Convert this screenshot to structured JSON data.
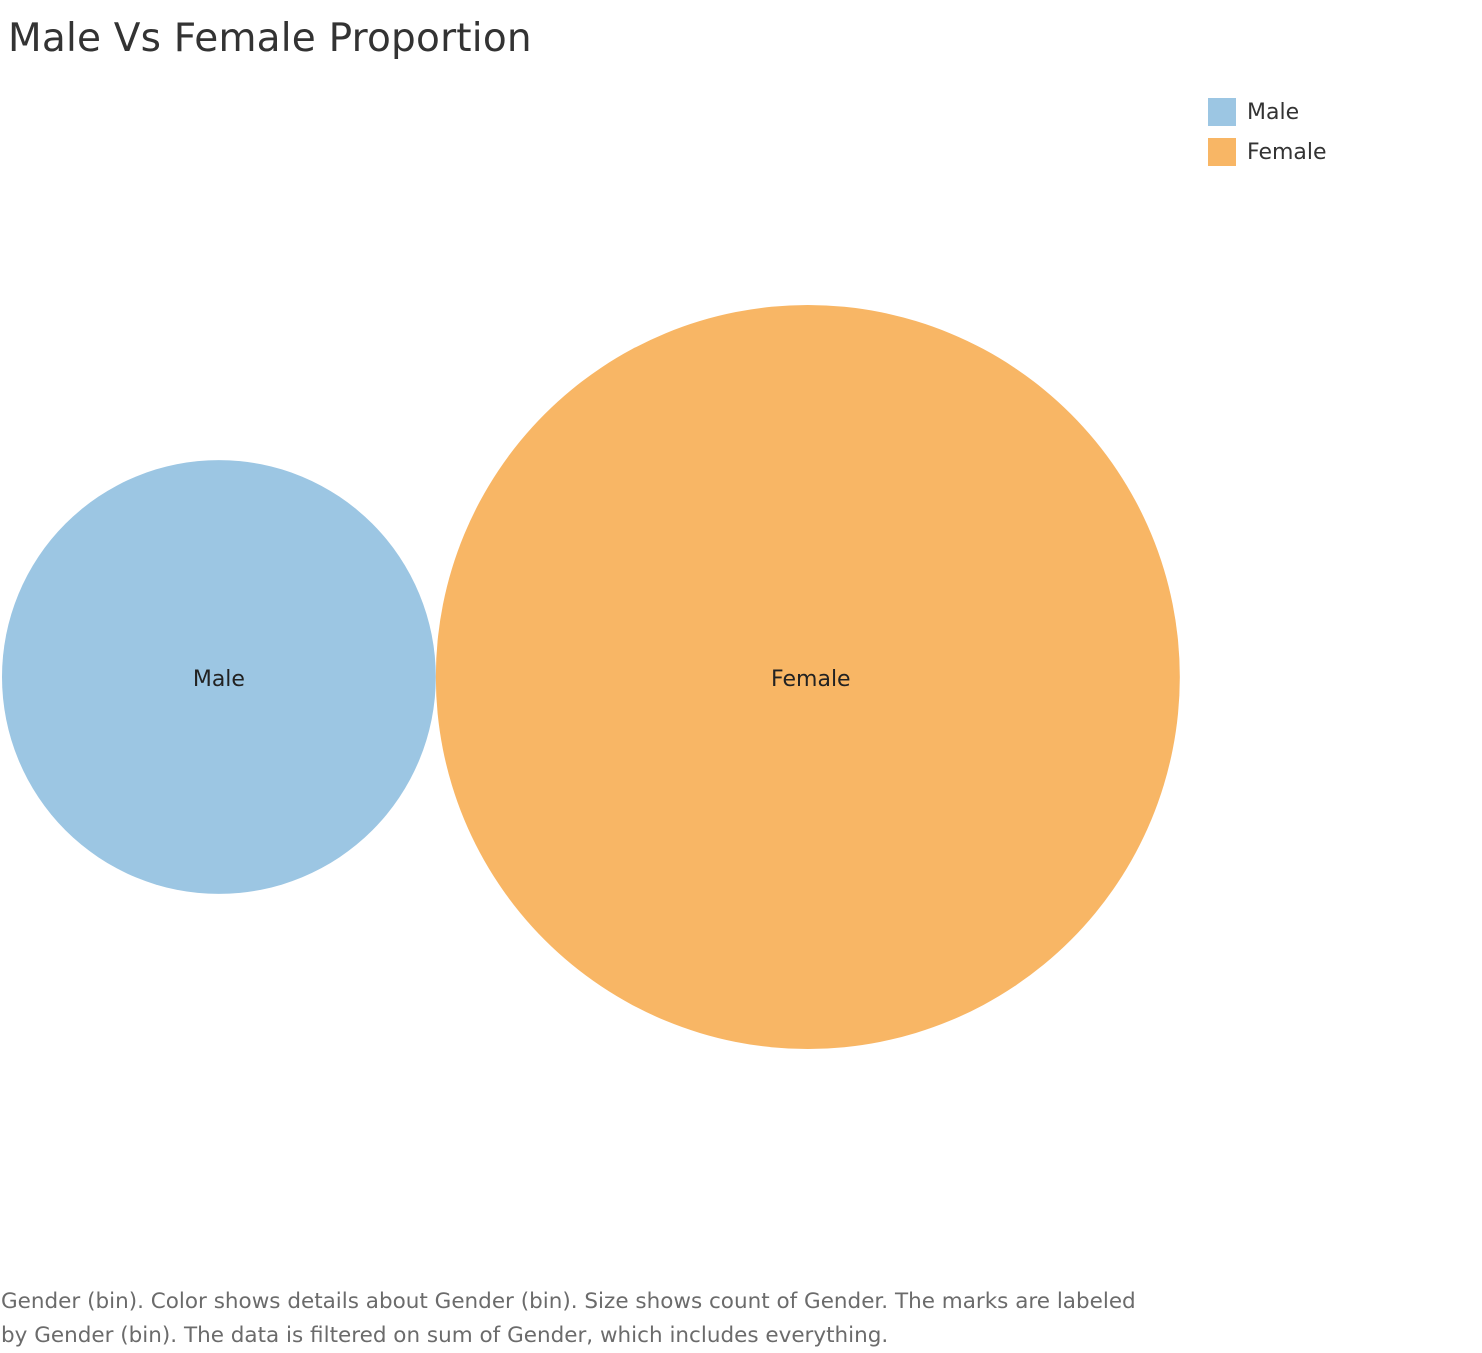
{
  "chart_data": {
    "type": "bubble",
    "title": "Male Vs Female Proportion",
    "size_measure": "count of Gender",
    "series": [
      {
        "name": "Male",
        "relative_size": 0.34,
        "color": "#9cc6e3"
      },
      {
        "name": "Female",
        "relative_size": 1.0,
        "color": "#f8b665"
      }
    ],
    "legend": {
      "placement": "top-right",
      "items": [
        {
          "label": "Male",
          "color": "#9cc6e3"
        },
        {
          "label": "Female",
          "color": "#f8b665"
        }
      ]
    },
    "caption": "Gender (bin).  Color shows details about Gender (bin).  Size shows count of Gender.  The marks are labeled by Gender (bin). The data is filtered on sum of Gender, which includes everything."
  }
}
